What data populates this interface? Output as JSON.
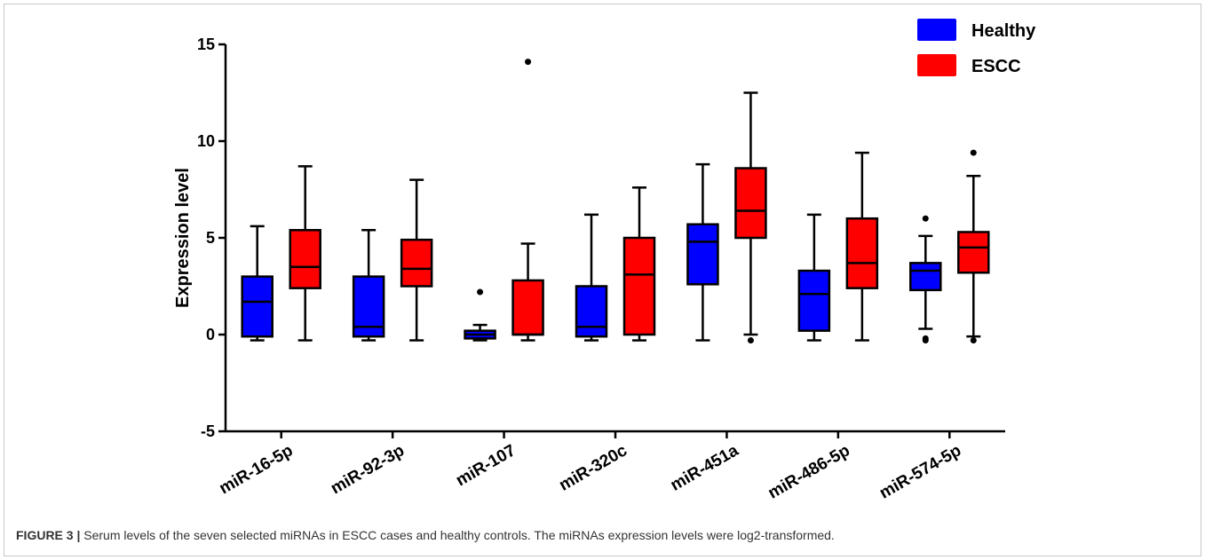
{
  "chart_data": {
    "type": "box",
    "ylabel": "Expression level",
    "xlabel": "",
    "ylim": [
      -5,
      15
    ],
    "yticks": [
      -5,
      0,
      5,
      10,
      15
    ],
    "grid": false,
    "legend_position": "top-right",
    "categories": [
      "miR-16-5p",
      "miR-92-3p",
      "miR-107",
      "miR-320c",
      "miR-451a",
      "miR-486-5p",
      "miR-574-5p"
    ],
    "series": [
      {
        "name": "Healthy",
        "color": "#0000ff",
        "boxes": [
          {
            "min": -0.3,
            "q1": -0.1,
            "median": 1.7,
            "q3": 3.0,
            "max": 5.6,
            "outliers": []
          },
          {
            "min": -0.3,
            "q1": -0.1,
            "median": 0.4,
            "q3": 3.0,
            "max": 5.4,
            "outliers": []
          },
          {
            "min": -0.3,
            "q1": -0.2,
            "median": 0.0,
            "q3": 0.2,
            "max": 0.5,
            "outliers": [
              2.2
            ]
          },
          {
            "min": -0.3,
            "q1": -0.1,
            "median": 0.4,
            "q3": 2.5,
            "max": 6.2,
            "outliers": []
          },
          {
            "min": -0.3,
            "q1": 2.6,
            "median": 4.8,
            "q3": 5.7,
            "max": 8.8,
            "outliers": []
          },
          {
            "min": -0.3,
            "q1": 0.2,
            "median": 2.1,
            "q3": 3.3,
            "max": 6.2,
            "outliers": []
          },
          {
            "min": 0.3,
            "q1": 2.3,
            "median": 3.3,
            "q3": 3.7,
            "max": 5.1,
            "outliers": [
              6.0,
              -0.2,
              -0.3
            ]
          }
        ]
      },
      {
        "name": "ESCC",
        "color": "#ff0000",
        "boxes": [
          {
            "min": -0.3,
            "q1": 2.4,
            "median": 3.5,
            "q3": 5.4,
            "max": 8.7,
            "outliers": []
          },
          {
            "min": -0.3,
            "q1": 2.5,
            "median": 3.4,
            "q3": 4.9,
            "max": 8.0,
            "outliers": []
          },
          {
            "min": -0.3,
            "q1": 0.0,
            "median": 0.0,
            "q3": 2.8,
            "max": 4.7,
            "outliers": [
              14.1
            ]
          },
          {
            "min": -0.3,
            "q1": 0.0,
            "median": 3.1,
            "q3": 5.0,
            "max": 7.6,
            "outliers": []
          },
          {
            "min": 0.0,
            "q1": 5.0,
            "median": 6.4,
            "q3": 8.6,
            "max": 12.5,
            "outliers": [
              -0.3
            ]
          },
          {
            "min": -0.3,
            "q1": 2.4,
            "median": 3.7,
            "q3": 6.0,
            "max": 9.4,
            "outliers": []
          },
          {
            "min": -0.1,
            "q1": 3.2,
            "median": 4.5,
            "q3": 5.3,
            "max": 8.2,
            "outliers": [
              9.4,
              -0.3
            ]
          }
        ]
      }
    ]
  },
  "legend": [
    {
      "label": "Healthy",
      "color": "#0000ff"
    },
    {
      "label": "ESCC",
      "color": "#ff0000"
    }
  ],
  "caption": {
    "label": "FIGURE 3 |",
    "text": " Serum levels of the seven selected miRNAs in ESCC cases and healthy controls. The miRNAs expression levels were log2-transformed."
  }
}
